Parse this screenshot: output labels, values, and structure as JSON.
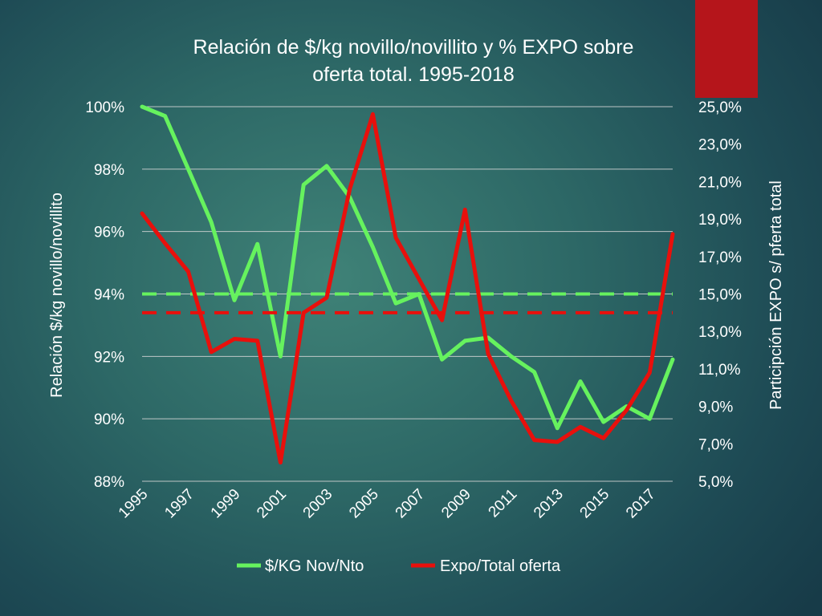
{
  "colors": {
    "accent": "#b5151b",
    "series_green": "#66f25e",
    "series_red": "#e8100c",
    "grid": "#d8d8d8",
    "text": "#ffffff"
  },
  "chart_data": {
    "type": "line",
    "title_lines": [
      "Relación de $/kg novillo/novillito y % EXPO sobre",
      "oferta total. 1995-2018"
    ],
    "ylabel": "Relación $/kg novillo/novillito",
    "y2label": "Participción EXPO s/ pferta total",
    "ylim": [
      0.88,
      1.0
    ],
    "y2lim": [
      5.0,
      25.0
    ],
    "left_ticks": [
      "100%",
      "98%",
      "96%",
      "94%",
      "92%",
      "90%",
      "88%"
    ],
    "right_ticks": [
      "25,0%",
      "23,0%",
      "21,0%",
      "19,0%",
      "17,0%",
      "15,0%",
      "13,0%",
      "11,0%",
      "9,0%",
      "7,0%",
      "5,0%"
    ],
    "x_tick_labels": [
      "1995",
      "1997",
      "1999",
      "2001",
      "2003",
      "2005",
      "2007",
      "2009",
      "2011",
      "2013",
      "2015",
      "2017"
    ],
    "x_points": [
      "1995",
      "1996",
      "1997",
      "1998",
      "1999",
      "2000",
      "2001",
      "2002",
      "2003",
      "2004",
      "2005",
      "2006",
      "2007",
      "2008",
      "2009",
      "2010",
      "2011",
      "2012",
      "2013",
      "2014",
      "2015",
      "2016",
      "2017",
      "2018"
    ],
    "legend_position": "bottom",
    "series": [
      {
        "name": "$/KG Nov/Nto",
        "axis": "left",
        "color": "#66f25e",
        "values": [
          1.0,
          0.997,
          0.98,
          0.963,
          0.938,
          0.956,
          0.92,
          0.975,
          0.981,
          0.971,
          0.955,
          0.937,
          0.94,
          0.919,
          0.925,
          0.926,
          0.92,
          0.915,
          0.897,
          0.912,
          0.899,
          0.904,
          0.9,
          0.919
        ],
        "average": 0.94
      },
      {
        "name": "Expo/Total oferta",
        "axis": "right",
        "color": "#e8100c",
        "values": [
          19.3,
          17.7,
          16.2,
          11.9,
          12.6,
          12.5,
          6.0,
          14.0,
          14.8,
          20.6,
          24.6,
          18.0,
          15.8,
          13.6,
          19.5,
          11.8,
          9.3,
          7.2,
          7.1,
          7.9,
          7.3,
          8.8,
          10.8,
          18.2
        ],
        "average": 14.0
      }
    ]
  }
}
